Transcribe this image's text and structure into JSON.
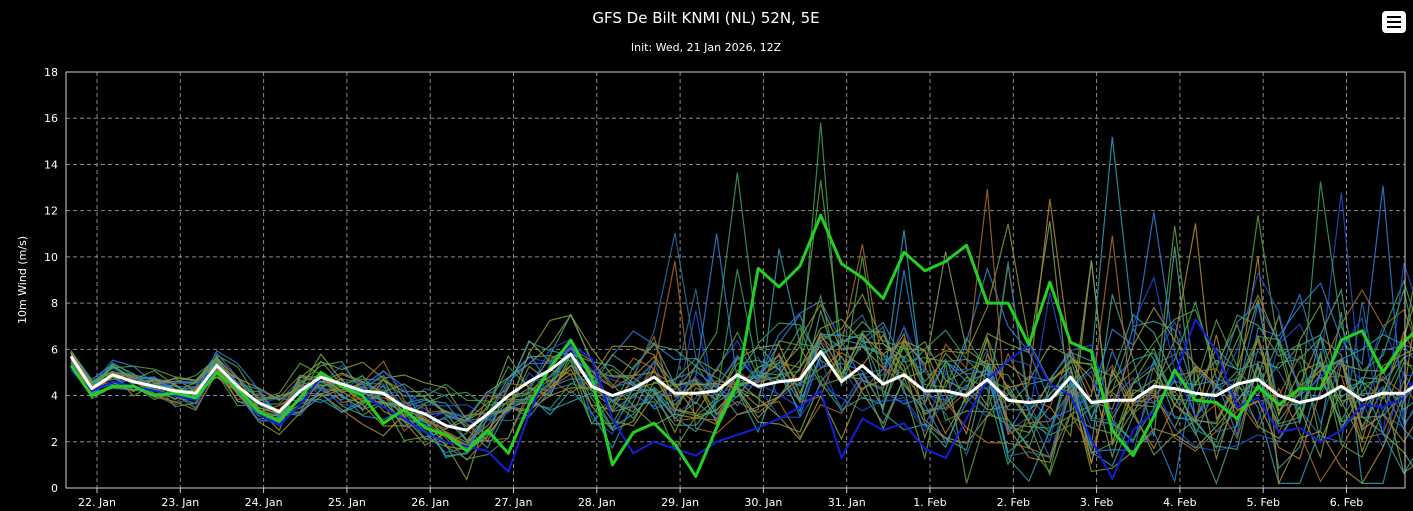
{
  "chart_data": {
    "type": "line",
    "title": "GFS De Bilt KNMI (NL) 52N, 5E",
    "subtitle": "Init: Wed, 21 Jan 2026, 12Z",
    "ylabel": "10m Wind (m/s)",
    "xlabel": "",
    "ylim": [
      0,
      18
    ],
    "yticks": [
      "0",
      "2",
      "4",
      "6",
      "8",
      "10",
      "12",
      "14",
      "16",
      "18"
    ],
    "x_start_label": "22. Jan",
    "x_ticks": [
      "22. Jan",
      "23. Jan",
      "24. Jan",
      "25. Jan",
      "26. Jan",
      "27. Jan",
      "28. Jan",
      "29. Jan",
      "30. Jan",
      "31. Jan",
      "1. Feb",
      "2. Feb",
      "3. Feb",
      "4. Feb",
      "5. Feb",
      "6. Feb"
    ],
    "grid": true,
    "legend": "none",
    "ensemble_colors": [
      "#1e4fd0",
      "#2f7fd8",
      "#2a9fb0",
      "#3aa060",
      "#5aa040",
      "#8a9a30",
      "#b08a30",
      "#a86a2a",
      "#2c6e9e",
      "#4aa08a",
      "#7aa050"
    ],
    "ensemble_members": 30,
    "series": [
      {
        "color": "#ffffff",
        "values": [
          5.7,
          4.3,
          4.9,
          4.6,
          4.4,
          4.2,
          4.1,
          5.3,
          4.4,
          3.7,
          3.3,
          4.2,
          4.8,
          4.5,
          4.2,
          4.1,
          3.5,
          3.2,
          2.7,
          2.5,
          3.2,
          4.0,
          4.6,
          5.1,
          5.8,
          4.4,
          4.0,
          4.3,
          4.8,
          4.1,
          4.1,
          4.2,
          4.9,
          4.4,
          4.6,
          4.7,
          5.9,
          4.6,
          5.3,
          4.5,
          4.9,
          4.2,
          4.2,
          4.0,
          4.7,
          3.8,
          3.7,
          3.8,
          4.8,
          3.7,
          3.8,
          3.8,
          4.4,
          4.3,
          4.1,
          4.0,
          4.5,
          4.7,
          4.0,
          3.7,
          3.9,
          4.4,
          3.8,
          4.1,
          4.1,
          4.7
        ]
      },
      {
        "color": "#22d022",
        "values": [
          5.3,
          4.0,
          4.4,
          4.4,
          4.0,
          4.1,
          3.9,
          5.0,
          4.3,
          3.3,
          2.9,
          3.9,
          5.0,
          4.4,
          4.0,
          2.8,
          3.4,
          2.6,
          2.3,
          1.6,
          2.5,
          1.5,
          3.6,
          5.2,
          6.4,
          4.8,
          1.0,
          2.4,
          2.8,
          1.9,
          0.5,
          2.6,
          4.5,
          9.5,
          8.7,
          9.6,
          11.8,
          9.7,
          9.1,
          8.2,
          10.2,
          9.4,
          9.8,
          10.5,
          8.0,
          8.0,
          6.2,
          8.9,
          6.3,
          5.9,
          2.5,
          1.4,
          3.1,
          5.1,
          3.8,
          3.7,
          3.0,
          4.4,
          3.6,
          4.3,
          4.3,
          6.4,
          6.8,
          5.0,
          6.3,
          7.2
        ]
      },
      {
        "color": "#1020d8",
        "values": [
          5.1,
          4.2,
          4.6,
          4.4,
          4.2,
          4.0,
          3.8,
          5.3,
          4.3,
          3.2,
          2.7,
          3.6,
          4.8,
          4.5,
          4.0,
          3.5,
          3.0,
          2.4,
          2.0,
          1.8,
          1.6,
          0.7,
          3.2,
          5.3,
          6.2,
          5.6,
          3.0,
          1.5,
          2.0,
          1.7,
          1.4,
          2.0,
          2.3,
          2.6,
          3.0,
          3.5,
          4.2,
          1.3,
          3.0,
          2.5,
          2.8,
          1.7,
          1.3,
          3.0,
          4.7,
          5.5,
          6.2,
          4.5,
          4.0,
          2.1,
          0.4,
          2.5,
          3.3,
          4.8,
          7.3,
          5.9,
          3.5,
          3.9,
          2.4,
          2.6,
          2.0,
          2.5,
          3.6,
          3.5,
          3.9,
          5.4
        ]
      }
    ]
  },
  "ui": {
    "menu_icon": "hamburger-menu-icon"
  }
}
